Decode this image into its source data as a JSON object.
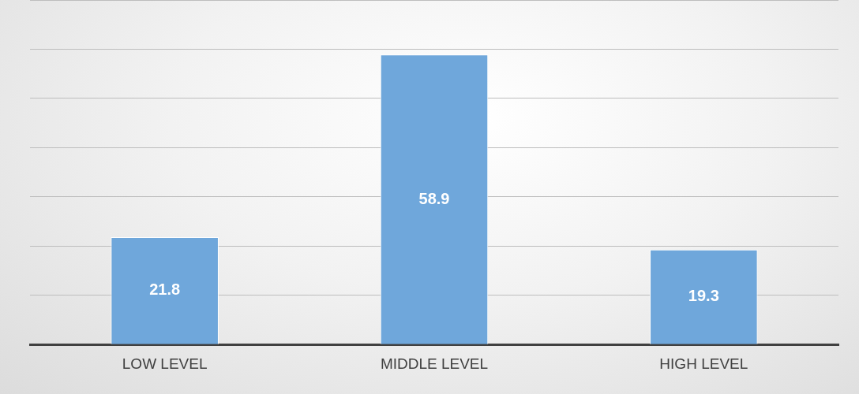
{
  "chart_data": {
    "type": "bar",
    "categories": [
      "LOW LEVEL",
      "MIDDLE LEVEL",
      "HIGH LEVEL"
    ],
    "values": [
      21.8,
      58.9,
      19.3
    ],
    "color": "#6fa7db",
    "ylim": [
      0,
      70
    ],
    "yticks": [
      {
        "value": 0,
        "label": null
      },
      {
        "value": 10,
        "label": null
      },
      {
        "value": 20,
        "label": null
      },
      {
        "value": 30,
        "label": null
      },
      {
        "value": 40,
        "label": null
      },
      {
        "value": 50,
        "label": null
      },
      {
        "value": 60,
        "label": null
      },
      {
        "value": 70,
        "label": null
      }
    ],
    "tick_labels": "x",
    "grid": "y",
    "data_labels": true,
    "legend": false
  }
}
